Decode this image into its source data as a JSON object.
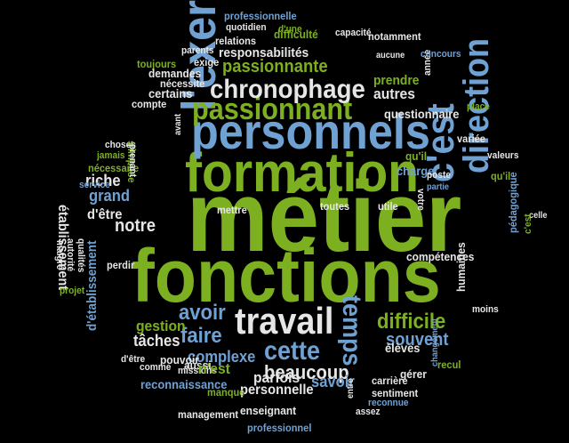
{
  "colors": {
    "background": "#000000",
    "green": "#7db021",
    "blue": "#6fa1d2",
    "white": "#e6e6e6",
    "gray": "#c4c4c4"
  },
  "words": [
    "métier",
    "fonctions",
    "formation",
    "personnels",
    "l'exercice",
    "travail",
    "direction",
    "c'est",
    "passionnant",
    "chronophage",
    "cette",
    "temps",
    "beaucoup",
    "difficile",
    "passionnante",
    "complexe",
    "souvent",
    "avoir",
    "faire",
    "gestion",
    "tâches",
    "notre",
    "d'être",
    "grand",
    "riche",
    "autres",
    "questionnaire",
    "compétences",
    "établissement",
    "responsabilités",
    "professionnelle",
    "professionnel",
    "personnelle",
    "reconnaissance",
    "parfois",
    "savoir",
    "élèves",
    "gérer",
    "carrière",
    "sentiment",
    "reconnue",
    "management",
    "enseignant",
    "missions",
    "pouvoir",
    "manque",
    "comme",
    "aussi",
    "n'est",
    "qu'il",
    "qu'il",
    "charge",
    "variée",
    "valeurs",
    "place",
    "prendre",
    "année",
    "aucune",
    "concours",
    "notamment",
    "capacité",
    "difficulté",
    "quotidien",
    "d'une",
    "relations",
    "parents",
    "toujours",
    "exige",
    "demandes",
    "nécessite",
    "compte",
    "certains",
    "choses",
    "jamais",
    "s'impose",
    "nécessaire",
    "service",
    "prenant",
    "avant",
    "mettre",
    "toutes",
    "utile",
    "poste",
    "votre",
    "partie",
    "celle",
    "pédagogique",
    "c'est",
    "humaines",
    "moins",
    "recul",
    "changement",
    "entre",
    "assez",
    "malgré",
    "autorité",
    "qualités",
    "projet",
    "perdir",
    "d'établissement",
    "d'être"
  ]
}
